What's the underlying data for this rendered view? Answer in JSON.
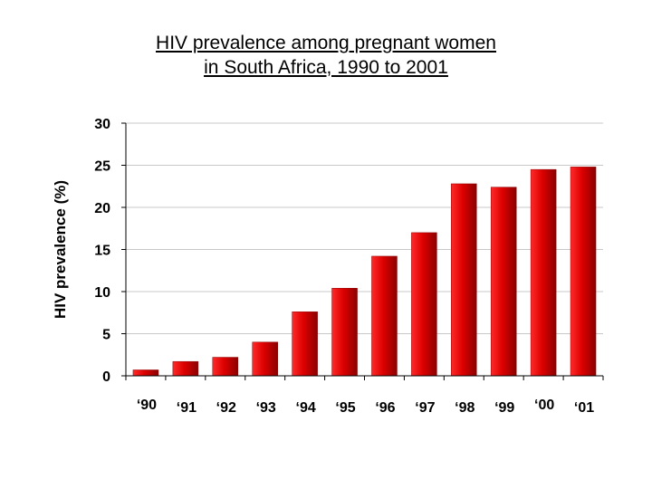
{
  "title": {
    "line1": "HIV prevalence among pregnant women",
    "line2": "in South Africa, 1990 to 2001"
  },
  "colors": {
    "bar_light": "#ff2a2a",
    "bar_mid": "#dd0000",
    "bar_dark": "#8a0000",
    "grid": "#c8c8c8",
    "axis": "#000000"
  },
  "chart_data": {
    "type": "bar",
    "title": "HIV prevalence among pregnant women in South Africa, 1990 to 2001",
    "xlabel": "",
    "ylabel": "HIV prevalence (%)",
    "ylim": [
      0,
      30
    ],
    "yticks": [
      0,
      5,
      10,
      15,
      20,
      25,
      30
    ],
    "grid": true,
    "categories": [
      "‘90",
      "‘91",
      "‘92",
      "‘93",
      "‘94",
      "‘95",
      "‘96",
      "‘97",
      "‘98",
      "‘99",
      "‘00",
      "‘01"
    ],
    "values": [
      0.7,
      1.7,
      2.2,
      4.0,
      7.6,
      10.4,
      14.2,
      17.0,
      22.8,
      22.4,
      24.5,
      24.8
    ]
  }
}
